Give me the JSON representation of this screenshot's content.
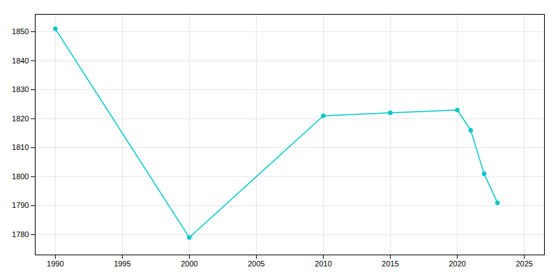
{
  "chart_data": {
    "type": "line",
    "x": [
      1990,
      2000,
      2010,
      2015,
      2020,
      2021,
      2022,
      2023
    ],
    "values": [
      1851,
      1779,
      1821,
      1822,
      1823,
      1816,
      1801,
      1791
    ],
    "color": "#00C8C8",
    "marker": "circle",
    "xlim": [
      1988.5,
      2026.5
    ],
    "ylim": [
      1773,
      1856
    ],
    "xticks": [
      1990,
      1995,
      2000,
      2005,
      2010,
      2015,
      2020,
      2025
    ],
    "yticks": [
      1780,
      1790,
      1800,
      1810,
      1820,
      1830,
      1840,
      1850
    ],
    "grid": true
  }
}
